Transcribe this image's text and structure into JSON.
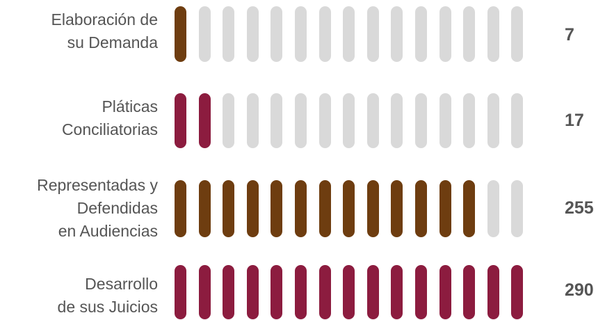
{
  "chart_data": {
    "type": "bar",
    "units_per_chart": 15,
    "colors": {
      "empty": "#d9d9d9",
      "brown": "#6e3d10",
      "maroon": "#8c1c3f"
    },
    "series": [
      {
        "label_lines": [
          "Elaboración de",
          "su Demanda"
        ],
        "value": "7",
        "filled_units": 1,
        "color": "brown"
      },
      {
        "label_lines": [
          "Pláticas",
          "Conciliatorias"
        ],
        "value": "17",
        "filled_units": 2,
        "color": "maroon"
      },
      {
        "label_lines": [
          "Representadas y",
          "Defendidas",
          "en Audiencias"
        ],
        "value": "255",
        "filled_units": 13,
        "color": "brown"
      },
      {
        "label_lines": [
          "Desarrollo",
          "de sus Juicios"
        ],
        "value": "290",
        "filled_units": 15,
        "color": "maroon"
      }
    ]
  }
}
